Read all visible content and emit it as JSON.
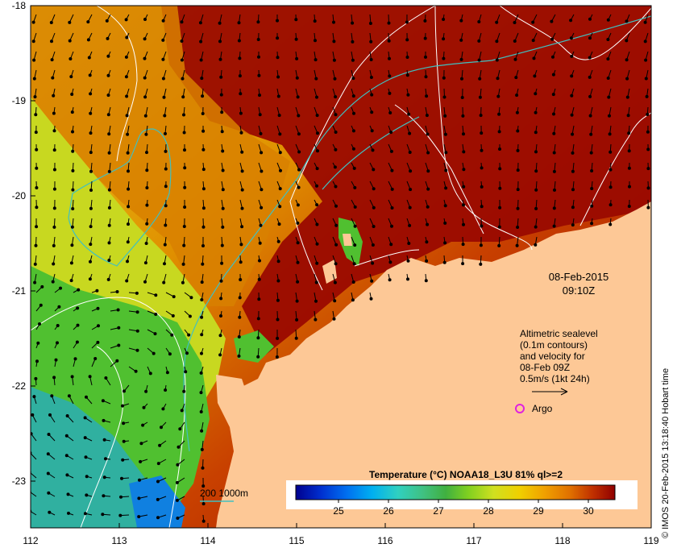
{
  "map": {
    "lon_ticks": [
      "112",
      "113",
      "114",
      "115",
      "116",
      "117",
      "118",
      "119"
    ],
    "lat_ticks": [
      "-18",
      "-19",
      "-20",
      "-21",
      "-22",
      "-23"
    ]
  },
  "date_label": {
    "date": "08-Feb-2015",
    "time": "09:10Z"
  },
  "legend": {
    "sealevel_lines": [
      "Altimetric sealevel",
      "(0.1m contours)",
      "and velocity for",
      "08-Feb 09Z",
      "0.5m/s (1kt 24h)"
    ],
    "argo_label": "Argo",
    "argo_color": "#e020e0",
    "depth_label": "200  1000m",
    "depth_color": "#40c0c0"
  },
  "colorbar": {
    "title": "Temperature (°C) NOAA18_L3U 81% ql>=2",
    "ticks": [
      "25",
      "26",
      "27",
      "28",
      "29",
      "30"
    ],
    "colors": [
      "#00008f",
      "#0030d0",
      "#0070f0",
      "#00b0f0",
      "#30d0c0",
      "#40c080",
      "#40b040",
      "#80d020",
      "#d0e020",
      "#f0d000",
      "#f0a000",
      "#e07000",
      "#c03000",
      "#900000"
    ]
  },
  "credit": "© IMOS 20-Feb-2015 13:18:40 Hobart time",
  "colors": {
    "land": "#fdc896",
    "hot": "#9a0a00",
    "warm": "#d07000",
    "mid": "#e0b000",
    "cool_green": "#50c030",
    "cool_teal": "#30b0a0",
    "sealevel_contour": "#ffffff",
    "depth_contour": "#40c0c0"
  }
}
